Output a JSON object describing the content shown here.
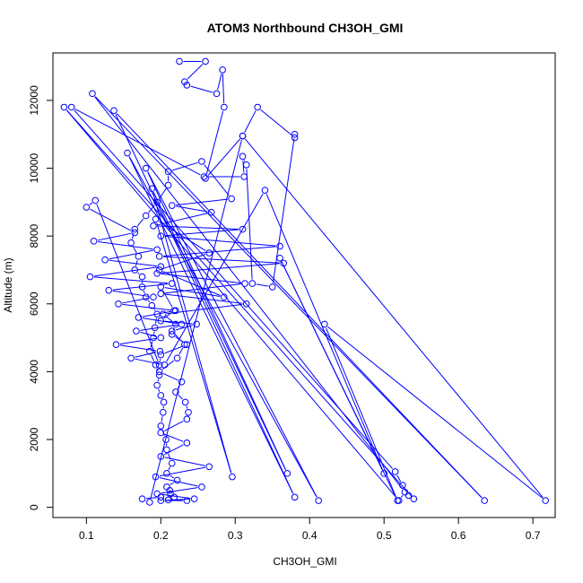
{
  "colors": {
    "series": "#0000ff",
    "axis": "#000000",
    "background": "#ffffff"
  },
  "chart_data": {
    "type": "line",
    "title": "ATOM3 Northbound CH3OH_GMI",
    "xlabel": "CH3OH_GMI",
    "ylabel": "Altitude (m)",
    "xlim": [
      0.055,
      0.73
    ],
    "ylim": [
      -300,
      13400
    ],
    "xticks": [
      0.1,
      0.2,
      0.3,
      0.4,
      0.5,
      0.6,
      0.7
    ],
    "xtick_labels": [
      "0.1",
      "0.2",
      "0.3",
      "0.4",
      "0.5",
      "0.6",
      "0.7"
    ],
    "yticks": [
      0,
      2000,
      4000,
      6000,
      8000,
      10000,
      12000
    ],
    "ytick_labels": [
      "0",
      "2000",
      "4000",
      "6000",
      "8000",
      "10000",
      "12000"
    ],
    "grid": false,
    "markers": "open-circle",
    "series": [
      {
        "x": [
          0.225,
          0.26,
          0.232,
          0.235,
          0.275,
          0.283,
          0.285,
          0.26,
          0.31,
          0.33,
          0.38,
          0.38,
          0.35,
          0.323,
          0.315,
          0.31,
          0.312,
          0.258,
          0.08,
          0.515,
          0.525,
          0.533,
          0.54,
          0.07,
          0.52,
          0.528,
          0.108,
          0.635,
          0.137,
          0.38,
          0.155,
          0.412,
          0.18,
          0.37,
          0.188,
          0.296,
          0.193,
          0.265,
          0.198,
          0.285,
          0.2,
          0.218,
          0.2,
          0.248,
          0.215,
          0.232,
          0.222,
          0.198,
          0.228,
          0.22,
          0.233,
          0.237,
          0.235,
          0.2,
          0.235,
          0.2,
          0.265,
          0.193,
          0.255,
          0.195,
          0.245,
          0.2,
          0.235,
          0.21,
          0.218,
          0.213,
          0.212,
          0.208,
          0.222,
          0.208,
          0.215,
          0.208,
          0.207,
          0.2,
          0.203,
          0.204,
          0.2,
          0.195,
          0.198,
          0.193,
          0.185,
          0.19,
          0.192,
          0.195,
          0.188,
          0.18,
          0.175,
          0.175,
          0.165,
          0.17,
          0.16,
          0.165,
          0.18,
          0.195,
          0.21,
          0.21,
          0.255,
          0.295,
          0.215,
          0.268,
          0.19,
          0.31,
          0.2,
          0.36,
          0.198,
          0.365,
          0.195,
          0.313,
          0.2,
          0.315,
          0.203,
          0.22,
          0.215,
          0.235,
          0.2,
          0.198,
          0.112,
          0.1,
          0.165,
          0.11,
          0.195,
          0.125,
          0.2,
          0.105,
          0.215,
          0.13,
          0.19,
          0.143,
          0.22,
          0.17,
          0.228,
          0.167,
          0.2,
          0.14,
          0.199,
          0.16,
          0.205,
          0.34,
          0.5,
          0.36,
          0.518,
          0.42,
          0.717,
          0.31,
          0.185,
          0.175,
          0.2
        ],
        "y": [
          13150,
          13150,
          12550,
          12450,
          12200,
          12900,
          11800,
          9700,
          10950,
          11800,
          10900,
          11000,
          6500,
          6600,
          10100,
          10350,
          9750,
          9750,
          11800,
          1050,
          650,
          350,
          250,
          11800,
          200,
          450,
          12200,
          200,
          11700,
          300,
          10450,
          200,
          10000,
          1000,
          9400,
          900,
          8500,
          7500,
          7000,
          6200,
          6500,
          5800,
          5500,
          5400,
          5200,
          4800,
          4400,
          4000,
          3700,
          3400,
          3100,
          2800,
          2600,
          2200,
          1900,
          1500,
          1200,
          900,
          600,
          400,
          250,
          200,
          200,
          220,
          300,
          400,
          500,
          600,
          800,
          1000,
          1300,
          1700,
          2000,
          2400,
          2800,
          3100,
          3300,
          3600,
          3900,
          4200,
          4600,
          5000,
          5300,
          5700,
          5950,
          6200,
          6500,
          6800,
          7000,
          7400,
          7800,
          8200,
          8600,
          9000,
          9500,
          9900,
          10200,
          9100,
          8900,
          8700,
          8300,
          8200,
          8000,
          7700,
          7400,
          7200,
          6900,
          6600,
          6300,
          6000,
          5700,
          5400,
          5100,
          4800,
          4500,
          4200,
          9050,
          8850,
          8100,
          7850,
          7600,
          7300,
          7100,
          6800,
          6600,
          6400,
          6200,
          6000,
          5800,
          5600,
          5400,
          5200,
          5000,
          4800,
          4600,
          4400,
          4200,
          9350,
          1000,
          7350,
          200,
          5400,
          200,
          10950,
          150,
          250,
          300
        ]
      }
    ]
  }
}
